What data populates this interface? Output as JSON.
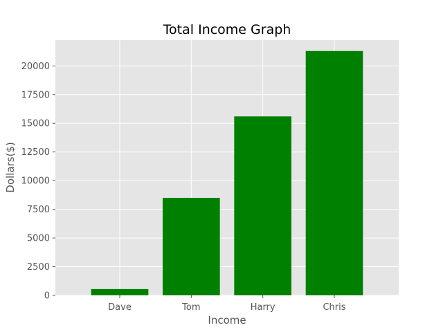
{
  "chart_data": {
    "type": "bar",
    "title": "Total Income Graph",
    "xlabel": "Income",
    "ylabel": "Dollars($)",
    "categories": [
      "Dave",
      "Tom",
      "Harry",
      "Chris"
    ],
    "values": [
      550,
      8500,
      15600,
      21300
    ],
    "ylim": [
      0,
      22250
    ],
    "yticks": [
      0,
      2500,
      5000,
      7500,
      10000,
      12500,
      15000,
      17500,
      20000
    ],
    "grid": true,
    "colors": {
      "bar": "#008000",
      "plot_background": "#e5e5e5",
      "grid": "#ffffff",
      "tick_mark": "#555555"
    }
  }
}
